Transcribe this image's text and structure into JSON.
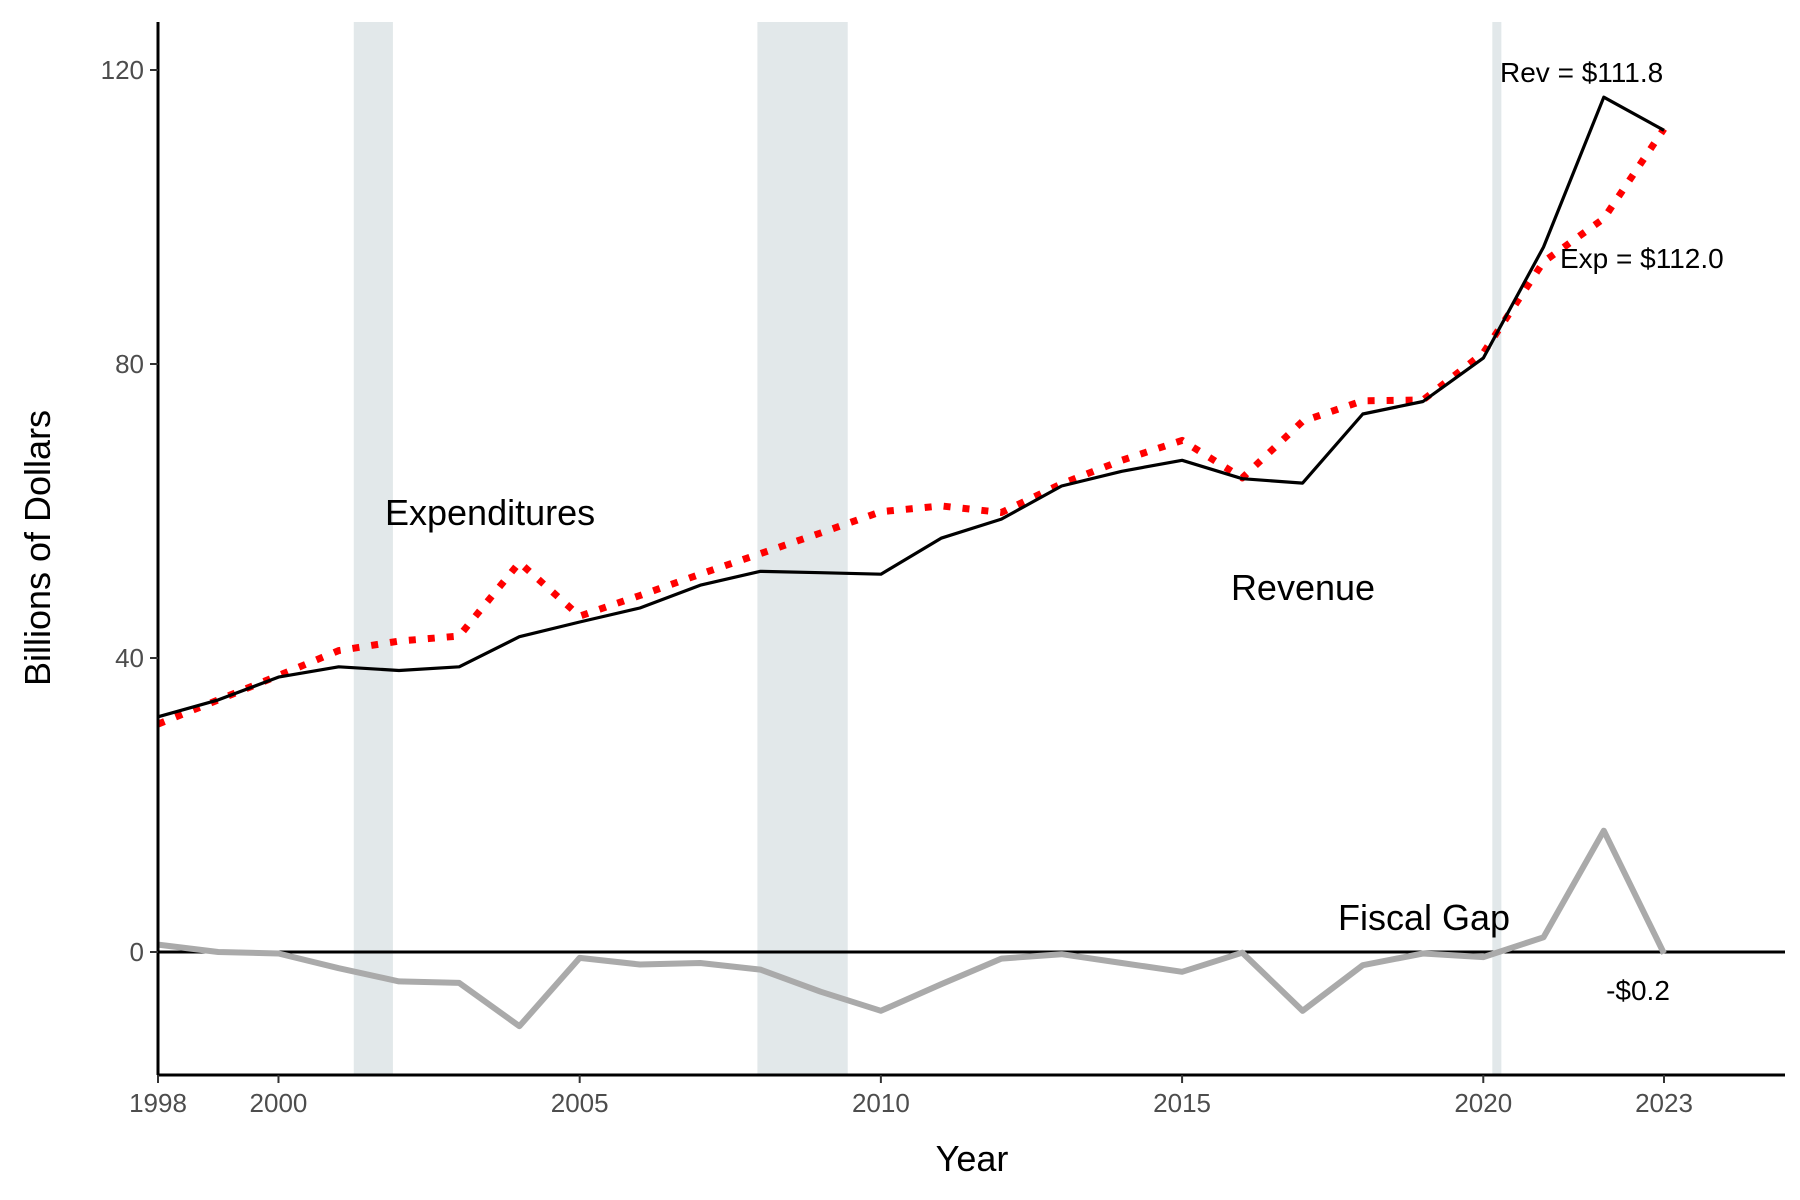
{
  "chart_data": {
    "type": "line",
    "title": "",
    "xlabel": "Year",
    "ylabel": "Billions of Dollars",
    "xlim": [
      1998,
      2025
    ],
    "ylim": [
      -16.5,
      126
    ],
    "x_ticks": [
      1998,
      2000,
      2005,
      2010,
      2015,
      2020,
      2023
    ],
    "y_ticks": [
      0,
      40,
      80,
      120
    ],
    "grid": false,
    "legend": "none",
    "recession_shading": [
      {
        "start": 2001.25,
        "end": 2001.9
      },
      {
        "start": 2007.95,
        "end": 2009.45
      },
      {
        "start": 2020.15,
        "end": 2020.3
      }
    ],
    "series": [
      {
        "key": "revenue",
        "name": "Revenue",
        "color": "#000000",
        "style": "solid",
        "x": [
          1998,
          1999,
          2000,
          2001,
          2002,
          2003,
          2004,
          2005,
          2006,
          2007,
          2008,
          2009,
          2010,
          2011,
          2012,
          2013,
          2014,
          2015,
          2016,
          2017,
          2018,
          2019,
          2020,
          2021,
          2022,
          2023
        ],
        "values": [
          32.0,
          34.3,
          37.4,
          38.8,
          38.3,
          38.8,
          42.9,
          44.9,
          46.8,
          49.9,
          51.8,
          51.6,
          51.4,
          56.3,
          58.9,
          63.4,
          65.4,
          66.9,
          64.4,
          63.8,
          73.2,
          74.9,
          80.8,
          95.9,
          116.3,
          111.8
        ]
      },
      {
        "key": "expenditures",
        "name": "Expenditures",
        "color": "#ff0000",
        "style": "dotted",
        "x": [
          1998,
          1999,
          2000,
          2001,
          2002,
          2003,
          2004,
          2005,
          2006,
          2007,
          2008,
          2009,
          2010,
          2011,
          2012,
          2013,
          2014,
          2015,
          2016,
          2017,
          2018,
          2019,
          2020,
          2021,
          2022,
          2023
        ],
        "values": [
          31.0,
          34.3,
          37.6,
          41.0,
          42.3,
          43.0,
          53.0,
          45.7,
          48.5,
          51.4,
          54.2,
          57.0,
          59.9,
          60.7,
          59.8,
          63.7,
          66.9,
          69.6,
          64.5,
          72.2,
          75.0,
          75.1,
          81.5,
          93.9,
          99.8,
          112.0
        ]
      },
      {
        "key": "fiscal_gap",
        "name": "Fiscal Gap",
        "color": "#aaaaaa",
        "style": "solid",
        "x": [
          1998,
          1999,
          2000,
          2001,
          2002,
          2003,
          2004,
          2005,
          2006,
          2007,
          2008,
          2009,
          2010,
          2011,
          2012,
          2013,
          2014,
          2015,
          2016,
          2017,
          2018,
          2019,
          2020,
          2021,
          2022,
          2023
        ],
        "values": [
          1.0,
          0.0,
          -0.2,
          -2.2,
          -4.0,
          -4.2,
          -10.1,
          -0.8,
          -1.7,
          -1.5,
          -2.4,
          -5.4,
          -8.0,
          -4.4,
          -0.9,
          -0.3,
          -1.5,
          -2.7,
          -0.1,
          -8.0,
          -1.8,
          -0.2,
          -0.7,
          2.0,
          16.5,
          -0.2
        ]
      }
    ],
    "zero_line": true,
    "annotations": {
      "expenditures": "Expenditures",
      "revenue": "Revenue",
      "fiscal_gap": "Fiscal Gap",
      "rev_end": "Rev = $111.8",
      "exp_end": "Exp = $112.0",
      "gap_end": "-$0.2"
    }
  }
}
